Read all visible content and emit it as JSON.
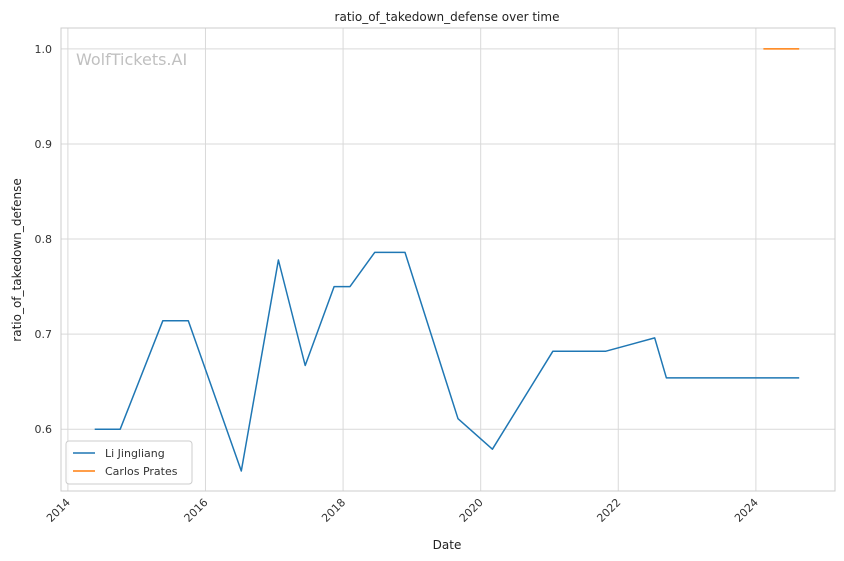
{
  "chart_data": {
    "type": "line",
    "title": "ratio_of_takedown_defense over time",
    "xlabel": "Date",
    "ylabel": "ratio_of_takedown_defense",
    "watermark": "WolfTickets.AI",
    "xlim": [
      2013.9,
      2025.15
    ],
    "ylim": [
      0.535,
      1.022
    ],
    "x_ticks": [
      2014,
      2016,
      2018,
      2020,
      2022,
      2024
    ],
    "x_tick_labels": [
      "2014",
      "2016",
      "2018",
      "2020",
      "2022",
      "2024"
    ],
    "y_ticks": [
      0.6,
      0.7,
      0.8,
      0.9,
      1.0
    ],
    "y_tick_labels": [
      "0.6",
      "0.7",
      "0.8",
      "0.9",
      "1.0"
    ],
    "grid": true,
    "legend_position": "lower-left",
    "series": [
      {
        "name": "Li Jingliang",
        "color": "#1f77b4",
        "x": [
          2014.39,
          2014.76,
          2015.38,
          2015.75,
          2016.52,
          2017.06,
          2017.45,
          2017.87,
          2018.1,
          2018.46,
          2018.9,
          2019.67,
          2020.17,
          2021.05,
          2021.82,
          2022.53,
          2022.7,
          2024.63
        ],
        "y": [
          0.6,
          0.6,
          0.714,
          0.714,
          0.556,
          0.778,
          0.667,
          0.75,
          0.75,
          0.786,
          0.786,
          0.611,
          0.579,
          0.682,
          0.682,
          0.696,
          0.654,
          0.654
        ]
      },
      {
        "name": "Carlos Prates",
        "color": "#ff7f0e",
        "x": [
          2024.11,
          2024.63
        ],
        "y": [
          1.0,
          1.0
        ]
      }
    ]
  }
}
